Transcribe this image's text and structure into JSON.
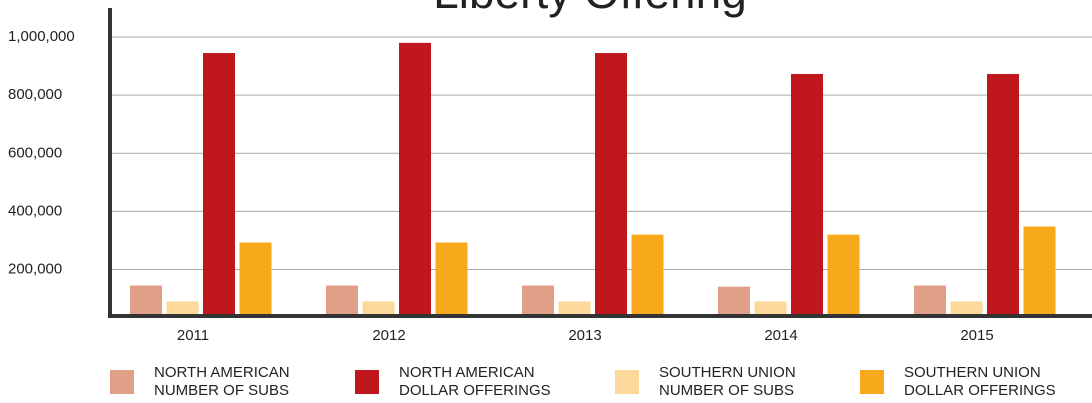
{
  "chart_data": {
    "type": "bar",
    "title": "Liberty Offering",
    "categories": [
      "2011",
      "2012",
      "2013",
      "2014",
      "2015"
    ],
    "series": [
      {
        "name": "NORTH AMERICAN NUMBER OF SUBS",
        "color": "#e0a088",
        "values": [
          145000,
          145000,
          145000,
          141000,
          145000
        ]
      },
      {
        "name": "SOUTHERN UNION NUMBER OF SUBS",
        "color": "#fcd99b",
        "values": [
          90000,
          90000,
          90000,
          90000,
          90000
        ]
      },
      {
        "name": "NORTH AMERICAN DOLLAR OFFERINGS",
        "color": "#c0161e",
        "values": [
          945000,
          980000,
          945000,
          873000,
          873000
        ]
      },
      {
        "name": "SOUTHERN UNION DOLLAR OFFERINGS",
        "color": "#f7a81b",
        "values": [
          293000,
          293000,
          320000,
          320000,
          348000
        ]
      }
    ],
    "legend_order": [
      0,
      2,
      1,
      3
    ],
    "ylim": [
      40000,
      1100000
    ],
    "yticks": [
      {
        "value": 200000,
        "label": "200,000"
      },
      {
        "value": 400000,
        "label": "400,000"
      },
      {
        "value": 600000,
        "label": "600,000"
      },
      {
        "value": 800000,
        "label": "800,000"
      },
      {
        "value": 1000000,
        "label": "1,000,000"
      }
    ],
    "grid": true
  }
}
